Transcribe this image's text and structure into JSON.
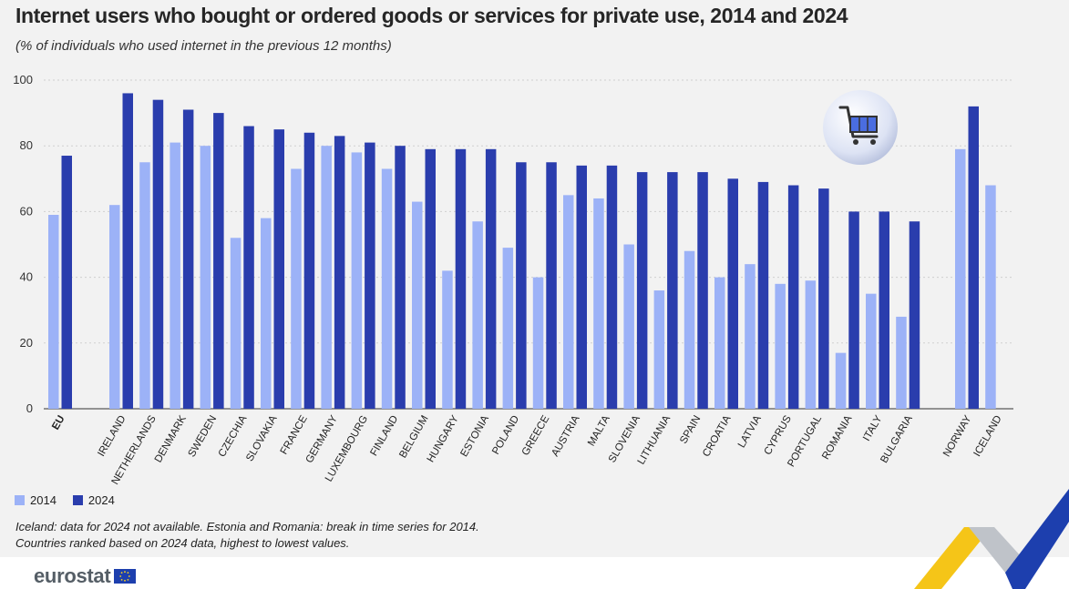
{
  "title": "Internet users who bought or ordered goods or services for private use, 2014 and 2024",
  "subtitle": "(% of individuals who used internet in the previous 12 months)",
  "colors": {
    "s2014": "#9cb2f7",
    "s2024": "#2a3dad",
    "grid": "#cfcfcf",
    "axis": "#333333"
  },
  "chart_data": {
    "type": "bar",
    "categories": [
      "EU",
      "IRELAND",
      "NETHERLANDS",
      "DENMARK",
      "SWEDEN",
      "CZECHIA",
      "SLOVAKIA",
      "FRANCE",
      "GERMANY",
      "LUXEMBOURG",
      "FINLAND",
      "BELGIUM",
      "HUNGARY",
      "ESTONIA",
      "POLAND",
      "GREECE",
      "AUSTRIA",
      "MALTA",
      "SLOVENIA",
      "LITHUANIA",
      "SPAIN",
      "CROATIA",
      "LATVIA",
      "CYPRUS",
      "PORTUGAL",
      "ROMANIA",
      "ITALY",
      "BULGARIA",
      "NORWAY",
      "ICELAND"
    ],
    "series": [
      {
        "name": "2014",
        "values": [
          59,
          62,
          75,
          81,
          80,
          52,
          58,
          73,
          80,
          78,
          73,
          63,
          42,
          57,
          49,
          40,
          65,
          64,
          50,
          36,
          48,
          40,
          44,
          38,
          39,
          17,
          35,
          28,
          79,
          68
        ]
      },
      {
        "name": "2024",
        "values": [
          77,
          96,
          94,
          91,
          90,
          86,
          85,
          84,
          83,
          81,
          80,
          79,
          79,
          79,
          75,
          75,
          74,
          74,
          72,
          72,
          72,
          70,
          69,
          68,
          67,
          60,
          60,
          57,
          92,
          null
        ]
      }
    ],
    "ylim": [
      0,
      100
    ],
    "yticks": [
      0,
      20,
      40,
      60,
      80,
      100
    ],
    "xlabel": "",
    "ylabel": "",
    "legend_position": "bottom-left"
  },
  "legend": [
    {
      "label": "2014",
      "color_key": "s2014"
    },
    {
      "label": "2024",
      "color_key": "s2024"
    }
  ],
  "notes": [
    "Iceland: data for 2024 not available. Estonia and Romania: break in time series for 2014.",
    "Countries ranked based on 2024 data, highest to lowest values."
  ],
  "logo": {
    "text": "eurostat",
    "icon": "eu-flag-icon"
  },
  "decoration": {
    "icon": "shopping-cart-icon"
  }
}
